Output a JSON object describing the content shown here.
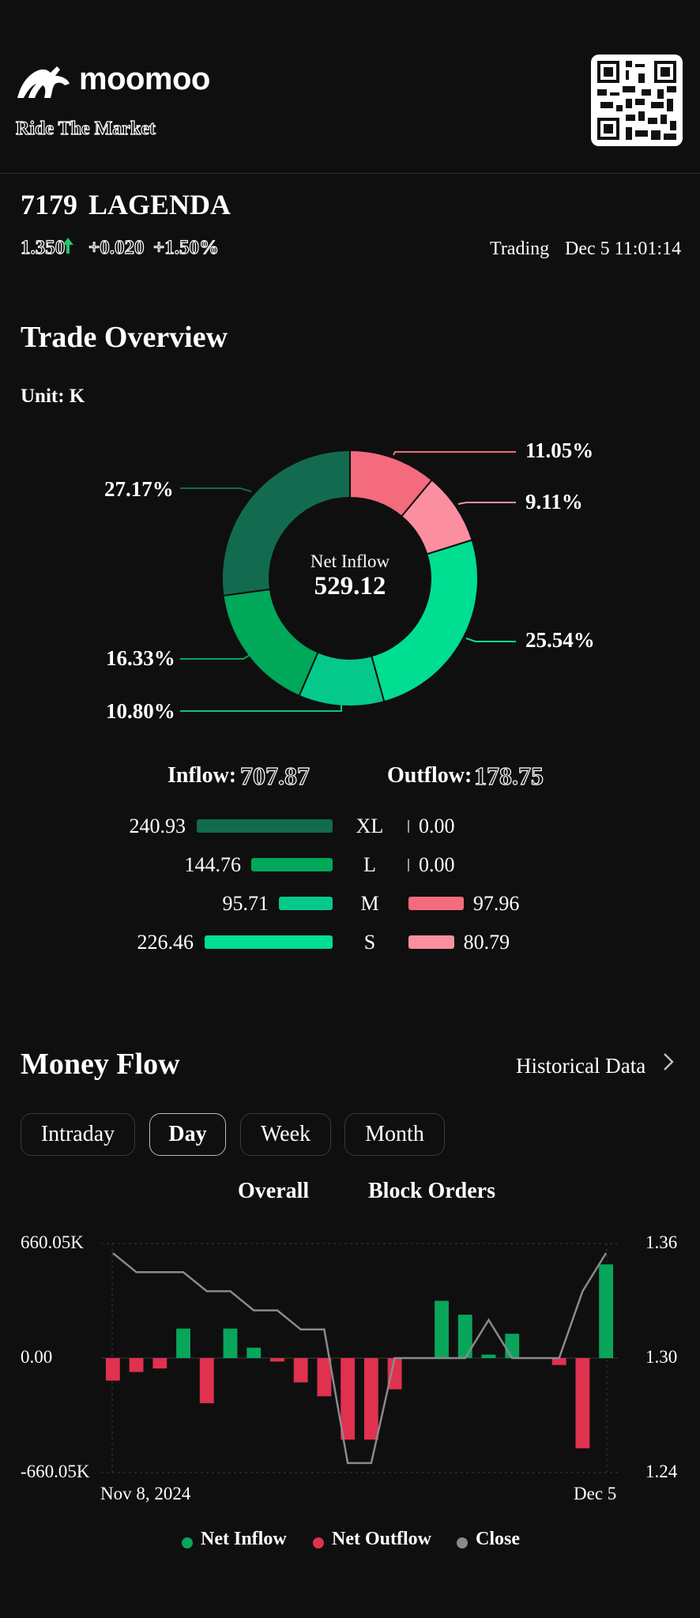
{
  "header": {
    "brand": "moomoo",
    "tagline": "Ride The Market",
    "logo_icon": "bull-icon",
    "qr_icon": "qr-code-icon"
  },
  "stock": {
    "code": "7179",
    "name": "LAGENDA",
    "price": "1.350",
    "direction_icon": "arrow-up-icon",
    "change": "+0.020",
    "change_pct": "+1.50%",
    "status": "Trading",
    "time": "Dec 5 11:01:14"
  },
  "trade_overview": {
    "title": "Trade Overview",
    "unit": "Unit: K",
    "center_label": "Net Inflow",
    "center_value": "529.12",
    "inflow_label": "Inflow:",
    "inflow_value": "707.87",
    "outflow_label": "Outflow:",
    "outflow_value": "178.75",
    "rows": [
      {
        "level": "XL",
        "inflow": "240.93",
        "inflow_num": 240.93,
        "outflow": "0.00",
        "outflow_num": 0
      },
      {
        "level": "L",
        "inflow": "144.76",
        "inflow_num": 144.76,
        "outflow": "0.00",
        "outflow_num": 0
      },
      {
        "level": "M",
        "inflow": "95.71",
        "inflow_num": 95.71,
        "outflow": "97.96",
        "outflow_num": 97.96
      },
      {
        "level": "S",
        "inflow": "226.46",
        "inflow_num": 226.46,
        "outflow": "80.79",
        "outflow_num": 80.79
      }
    ],
    "colors": {
      "in_xl": "#136b4f",
      "in_l": "#00a85a",
      "in_m": "#05c98a",
      "in_s": "#00de92",
      "out_m": "#f36b7c",
      "out_s": "#fb8f9f"
    }
  },
  "chart_data": [
    {
      "type": "pie",
      "subtype": "donut",
      "center_label": "Net Inflow",
      "center_value": "529.12",
      "slices": [
        {
          "label": "11.05%",
          "value": 11.05,
          "color": "#f36b7c"
        },
        {
          "label": "9.11%",
          "value": 9.11,
          "color": "#fb8f9f"
        },
        {
          "label": "25.54%",
          "value": 25.54,
          "color": "#00de92"
        },
        {
          "label": "10.80%",
          "value": 10.8,
          "color": "#05c98a"
        },
        {
          "label": "16.33%",
          "value": 16.33,
          "color": "#00a85a"
        },
        {
          "label": "27.17%",
          "value": 27.17,
          "color": "#136b4f"
        }
      ]
    },
    {
      "type": "bar",
      "combo": "bar+line",
      "x_start_label": "Nov 8, 2024",
      "x_end_label": "Dec 5",
      "left_axis": {
        "top": "660.05K",
        "mid": "0.00",
        "bottom": "-660.05K",
        "range": [
          -660.05,
          660.05
        ],
        "unit": "K"
      },
      "right_axis": {
        "top": "1.36",
        "mid": "1.30",
        "bottom": "1.24",
        "range": [
          1.24,
          1.36
        ]
      },
      "net_flow_k": [
        -130,
        -80,
        -60,
        170,
        -260,
        170,
        60,
        -20,
        -140,
        -220,
        -470,
        -470,
        -180,
        0,
        330,
        250,
        20,
        140,
        0,
        -40,
        -520,
        540
      ],
      "close": [
        1.355,
        1.345,
        1.345,
        1.345,
        1.335,
        1.335,
        1.325,
        1.325,
        1.315,
        1.315,
        1.245,
        1.245,
        1.3,
        1.3,
        1.3,
        1.3,
        1.32,
        1.3,
        1.3,
        1.3,
        1.335,
        1.355
      ],
      "series_colors": {
        "inflow": "#09a55a",
        "outflow": "#e0314e",
        "close": "#8a8a8d"
      },
      "grid": true
    }
  ],
  "money_flow": {
    "title": "Money Flow",
    "historical_link": "Historical Data",
    "chevron_icon": "chevron-right-icon",
    "tabs": [
      "Intraday",
      "Day",
      "Week",
      "Month"
    ],
    "active_tab": "Day",
    "sub_tabs": [
      "Overall",
      "Block Orders"
    ],
    "legend": [
      {
        "label": "Net Inflow",
        "color": "#09a55a"
      },
      {
        "label": "Net Outflow",
        "color": "#e0314e"
      },
      {
        "label": "Close",
        "color": "#8a8a8d"
      }
    ]
  }
}
